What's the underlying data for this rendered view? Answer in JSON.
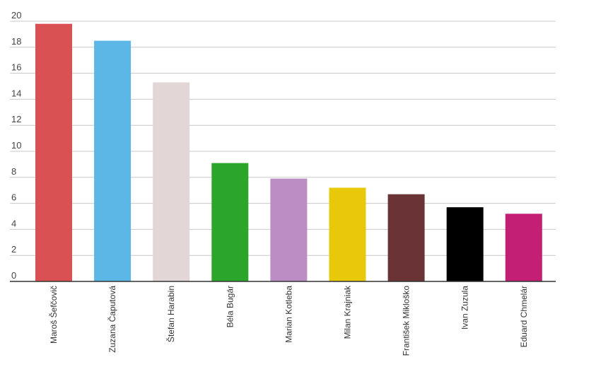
{
  "chart_data": {
    "type": "bar",
    "categories": [
      "Maroš Šefčovič",
      "Zuzana Čaputová",
      "Štefan Harabin",
      "Béla Bugár",
      "Marian Kotleba",
      "Milan Krajniak",
      "František Mikloško",
      "Ivan Zuzula",
      "Eduard Chmelár"
    ],
    "values": [
      19.8,
      18.5,
      15.3,
      9.1,
      7.9,
      7.2,
      6.7,
      5.7,
      5.2
    ],
    "colors": [
      "#d95153",
      "#5cb6e6",
      "#e2d6d6",
      "#2ca62a",
      "#bb8dc4",
      "#e8c80a",
      "#6a3335",
      "#000000",
      "#c31f75"
    ],
    "title": "",
    "xlabel": "",
    "ylabel": "",
    "ylim": [
      0,
      20
    ],
    "yticks": [
      0,
      2,
      4,
      6,
      8,
      10,
      12,
      14,
      16,
      18,
      20
    ],
    "grid": true,
    "legend": "none"
  }
}
